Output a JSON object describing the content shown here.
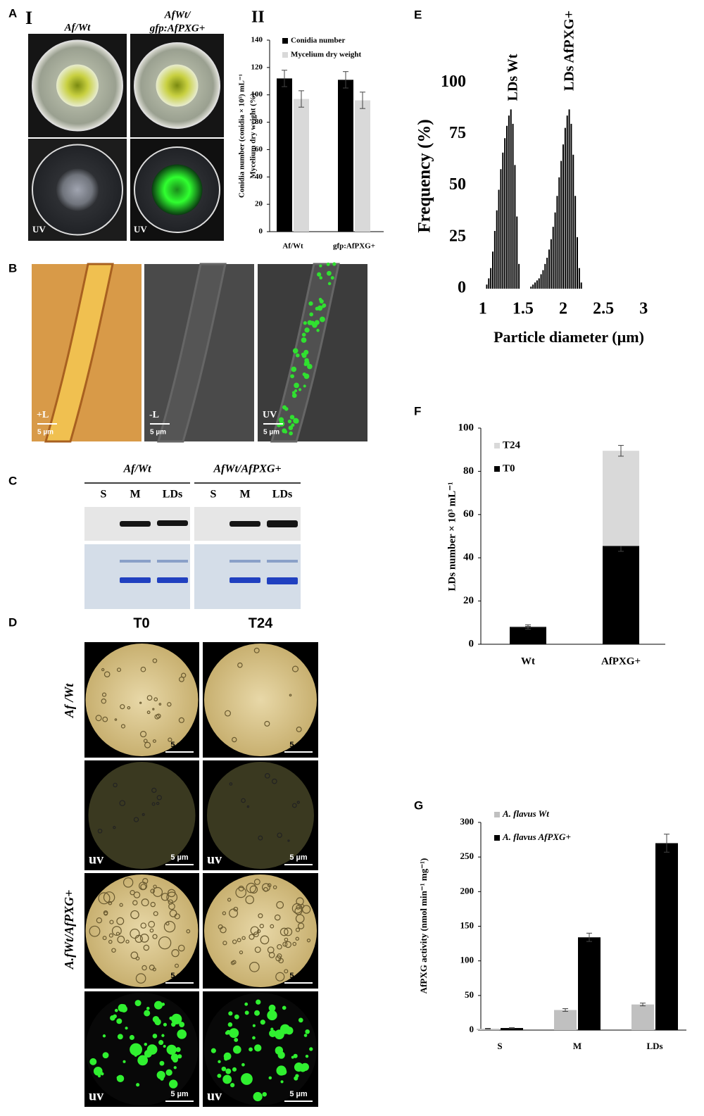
{
  "panel_labels": [
    "A",
    "B",
    "C",
    "D",
    "E",
    "F",
    "G"
  ],
  "panel_a": {
    "sublabels": [
      "I",
      "II"
    ],
    "strain_wt": "Af/Wt",
    "strain_pxg": [
      "AfWt/",
      "gfp:AfPXG+"
    ],
    "uv": [
      "UV",
      "UV"
    ]
  },
  "panel_b": {
    "labels": [
      "+L",
      "-L",
      "UV"
    ],
    "scale": "5 µm"
  },
  "panel_c": {
    "strains": [
      "Af/Wt",
      "AfWt/AfPXG+"
    ],
    "lanes": [
      "S",
      "M",
      "LDs",
      "S",
      "M",
      "LDs"
    ]
  },
  "panel_d": {
    "times": [
      "T0",
      "T24"
    ],
    "strains": [
      "Af /Wt",
      "A.fWt/AfPXG+"
    ],
    "uv": [
      "uv",
      "uv",
      "uv",
      "uv"
    ],
    "scale": "5 µm"
  },
  "chart_data": [
    {
      "type": "bar",
      "ylabel": [
        "Conidia number (conidia × 10⁵) mL⁻¹",
        "Mycelium dry weight (%)"
      ],
      "categories": [
        "Af/Wt",
        "gfp:AfPXG+"
      ],
      "series": [
        {
          "name": "Conidia number",
          "color": "#000000",
          "values": [
            112,
            111
          ],
          "errors": [
            6,
            6
          ]
        },
        {
          "name": "Mycelium dry weight",
          "color": "#d9d9d9",
          "values": [
            97,
            96
          ],
          "errors": [
            6,
            6
          ]
        }
      ],
      "ylim": [
        0,
        140
      ],
      "yticks": [
        0,
        20,
        40,
        60,
        80,
        100,
        120,
        140
      ]
    },
    {
      "type": "stem",
      "ylabel": "Frequency (%)",
      "xlabel": "Particle diameter (µm)",
      "annotations": [
        "LDs Wt",
        "LDs AfPXG+"
      ],
      "color": "#000000",
      "x": [
        1.05,
        1.075,
        1.1,
        1.125,
        1.15,
        1.175,
        1.2,
        1.225,
        1.25,
        1.275,
        1.3,
        1.325,
        1.35,
        1.375,
        1.4,
        1.425,
        1.45,
        1.6,
        1.625,
        1.65,
        1.675,
        1.7,
        1.725,
        1.75,
        1.775,
        1.8,
        1.825,
        1.85,
        1.875,
        1.9,
        1.925,
        1.95,
        1.975,
        2.0,
        2.025,
        2.05,
        2.075,
        2.1,
        2.125,
        2.15,
        2.175,
        2.2,
        2.225
      ],
      "values": [
        2,
        5,
        10,
        18,
        28,
        38,
        48,
        58,
        66,
        73,
        79,
        84,
        87,
        80,
        60,
        35,
        12,
        1,
        2,
        3,
        4,
        5,
        7,
        9,
        12,
        15,
        19,
        24,
        30,
        37,
        45,
        54,
        62,
        70,
        78,
        84,
        87,
        80,
        65,
        45,
        25,
        10,
        3
      ],
      "xlim": [
        0.95,
        3.05
      ],
      "xticks": [
        1,
        1.5,
        2,
        2.5,
        3
      ],
      "ylim": [
        0,
        110
      ],
      "yticks": [
        0,
        25,
        50,
        75,
        100
      ]
    },
    {
      "type": "stacked_bar",
      "ylabel": "LDs number × 10³ mL⁻¹",
      "categories": [
        "Wt",
        "AfPXG+"
      ],
      "series": [
        {
          "name": "T0",
          "color": "#000000",
          "values": [
            8,
            45.5
          ],
          "errors": [
            1,
            2.5
          ]
        },
        {
          "name": "T24",
          "color": "#d9d9d9",
          "values": [
            0.3,
            44
          ],
          "errors": [
            0,
            2.5
          ]
        }
      ],
      "ylim": [
        0,
        100
      ],
      "yticks": [
        0,
        20,
        40,
        60,
        80,
        100
      ]
    },
    {
      "type": "bar",
      "ylabel": "AfPXG activity (nmol min⁻¹ mg⁻¹)",
      "categories": [
        "S",
        "M",
        "LDs"
      ],
      "series": [
        {
          "name": "A. flavus Wt",
          "color": "#c0c0c0",
          "values": [
            2,
            29,
            37
          ],
          "errors": [
            0.5,
            2,
            2
          ]
        },
        {
          "name": "A. flavus AfPXG+",
          "color": "#000000",
          "values": [
            3,
            134,
            270
          ],
          "errors": [
            0.5,
            6,
            13
          ]
        }
      ],
      "ylim": [
        0,
        300
      ],
      "yticks": [
        0,
        50,
        100,
        150,
        200,
        250,
        300
      ]
    }
  ]
}
